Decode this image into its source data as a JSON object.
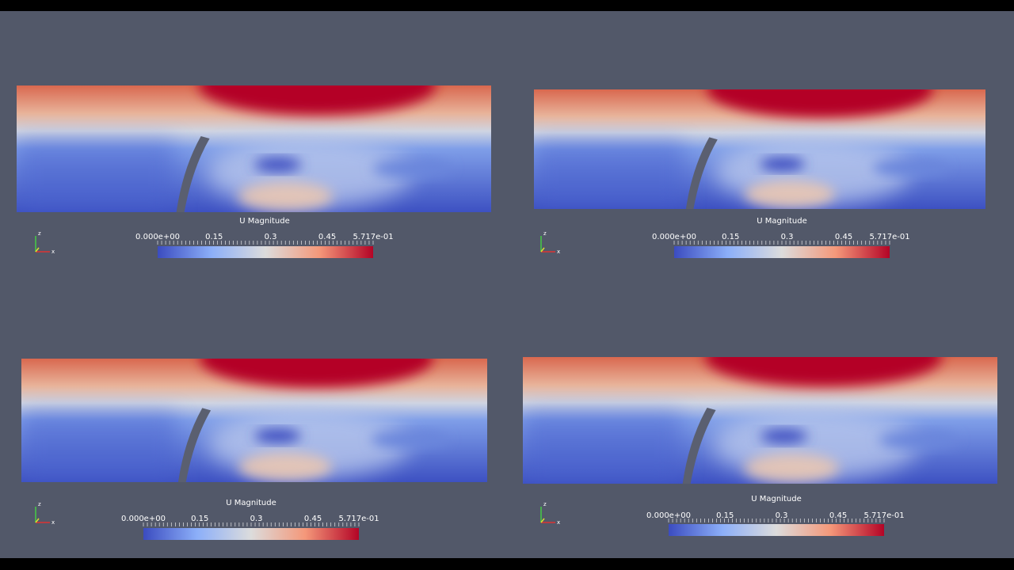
{
  "panels": [
    {
      "colorbar": {
        "title": "U Magnitude",
        "labels": [
          "0.000e+00",
          "0.15",
          "0.3",
          "0.45",
          "5.717e-01"
        ]
      },
      "axes": {
        "z": "z",
        "x": "x"
      }
    },
    {
      "colorbar": {
        "title": "U Magnitude",
        "labels": [
          "0.000e+00",
          "0.15",
          "0.3",
          "0.45",
          "5.717e-01"
        ]
      },
      "axes": {
        "z": "z",
        "x": "x"
      }
    },
    {
      "colorbar": {
        "title": "U Magnitude",
        "labels": [
          "0.000e+00",
          "0.15",
          "0.3",
          "0.45",
          "5.717e-01"
        ]
      },
      "axes": {
        "z": "z",
        "x": "x"
      }
    },
    {
      "colorbar": {
        "title": "U Magnitude",
        "labels": [
          "0.000e+00",
          "0.15",
          "0.3",
          "0.45",
          "5.717e-01"
        ]
      },
      "axes": {
        "z": "z",
        "x": "x"
      }
    }
  ]
}
